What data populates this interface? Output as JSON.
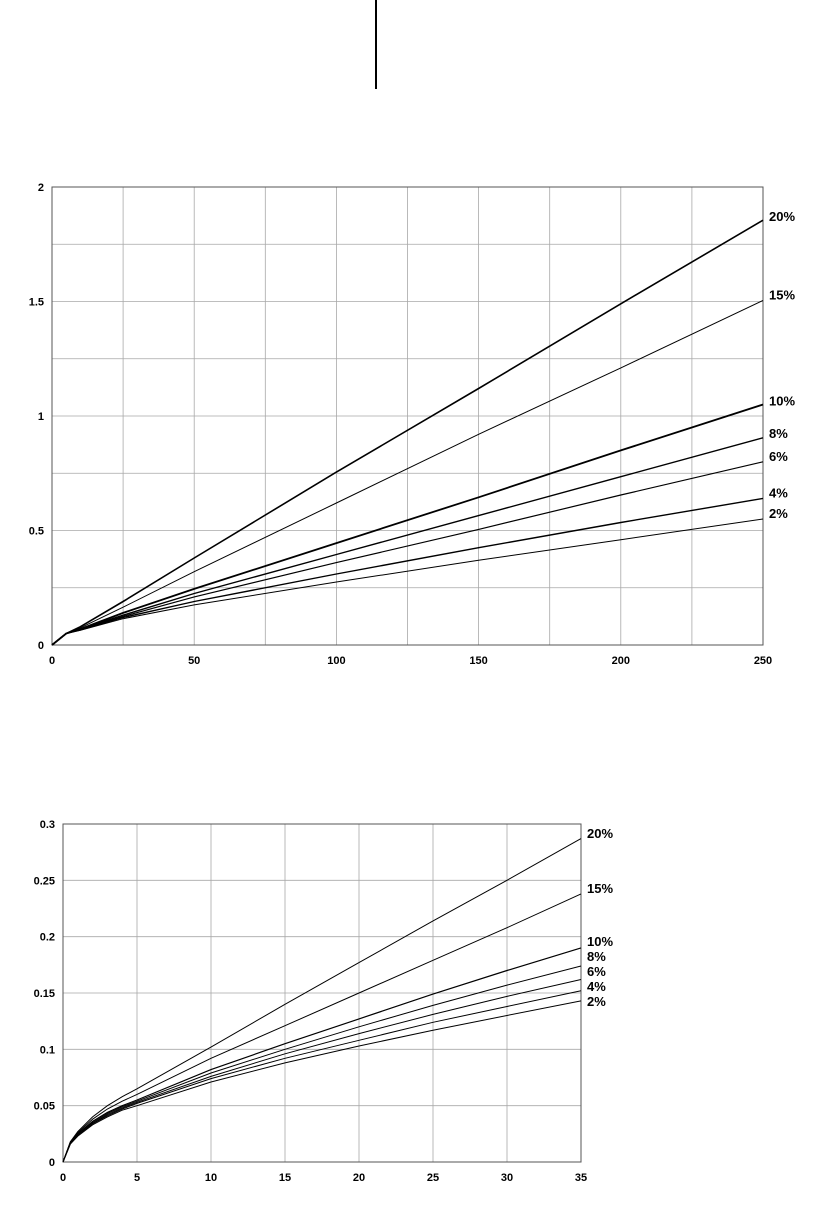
{
  "chart_data": [
    {
      "type": "line",
      "xlim": [
        0,
        250
      ],
      "ylim": [
        0,
        2
      ],
      "x_ticks": [
        0,
        50,
        100,
        150,
        200,
        250
      ],
      "x_tick_labels": [
        "0",
        "50",
        "100",
        "150",
        "200",
        "250"
      ],
      "y_ticks": [
        0,
        0.5,
        1,
        1.5,
        2
      ],
      "y_tick_labels": [
        "0",
        "0.5",
        "1",
        "1.5",
        "2"
      ],
      "x_grid": [
        0,
        25,
        50,
        75,
        100,
        125,
        150,
        175,
        200,
        225,
        250
      ],
      "y_grid": [
        0,
        0.25,
        0.5,
        0.75,
        1,
        1.25,
        1.5,
        1.75,
        2
      ],
      "grid": true,
      "legend": "labels at right end of each line",
      "series": [
        {
          "name": "20%",
          "x": [
            0,
            5,
            10,
            25,
            50,
            100,
            150,
            200,
            250
          ],
          "y": [
            0,
            0.05,
            0.08,
            0.19,
            0.38,
            0.755,
            1.12,
            1.49,
            1.855
          ]
        },
        {
          "name": "15%",
          "x": [
            0,
            5,
            10,
            25,
            50,
            100,
            150,
            200,
            250
          ],
          "y": [
            0,
            0.05,
            0.075,
            0.165,
            0.32,
            0.62,
            0.92,
            1.21,
            1.505
          ]
        },
        {
          "name": "10%",
          "x": [
            0,
            5,
            10,
            25,
            50,
            100,
            150,
            200,
            250
          ],
          "y": [
            0,
            0.05,
            0.07,
            0.14,
            0.245,
            0.445,
            0.645,
            0.85,
            1.05
          ]
        },
        {
          "name": "8%",
          "x": [
            0,
            5,
            10,
            25,
            50,
            100,
            150,
            200,
            250
          ],
          "y": [
            0,
            0.05,
            0.07,
            0.13,
            0.225,
            0.395,
            0.565,
            0.735,
            0.905
          ]
        },
        {
          "name": "6%",
          "x": [
            0,
            5,
            10,
            25,
            50,
            100,
            150,
            200,
            250
          ],
          "y": [
            0,
            0.05,
            0.068,
            0.125,
            0.21,
            0.36,
            0.505,
            0.655,
            0.8
          ]
        },
        {
          "name": "4%",
          "x": [
            0,
            5,
            10,
            25,
            50,
            100,
            150,
            200,
            250
          ],
          "y": [
            0,
            0.05,
            0.066,
            0.12,
            0.19,
            0.31,
            0.425,
            0.535,
            0.64
          ]
        },
        {
          "name": "2%",
          "x": [
            0,
            5,
            10,
            25,
            50,
            100,
            150,
            200,
            250
          ],
          "y": [
            0,
            0.05,
            0.064,
            0.115,
            0.175,
            0.275,
            0.37,
            0.46,
            0.55
          ]
        }
      ]
    },
    {
      "type": "line",
      "xlim": [
        0,
        35
      ],
      "ylim": [
        0,
        0.3
      ],
      "x_ticks": [
        0,
        5,
        10,
        15,
        20,
        25,
        30,
        35
      ],
      "x_tick_labels": [
        "0",
        "5",
        "10",
        "15",
        "20",
        "25",
        "30",
        "35"
      ],
      "y_ticks": [
        0,
        0.05,
        0.1,
        0.15,
        0.2,
        0.25,
        0.3
      ],
      "y_tick_labels": [
        "0",
        "0.05",
        "0.1",
        "0.15",
        "0.2",
        "0.25",
        "0.3"
      ],
      "x_grid": [
        0,
        5,
        10,
        15,
        20,
        25,
        30,
        35
      ],
      "y_grid": [
        0,
        0.05,
        0.1,
        0.15,
        0.2,
        0.25,
        0.3
      ],
      "grid": true,
      "legend": "labels at right end of each line",
      "series": [
        {
          "name": "20%",
          "x": [
            0,
            0.5,
            1,
            2,
            3,
            4,
            5,
            10,
            15,
            20,
            25,
            30,
            35
          ],
          "y": [
            0,
            0.018,
            0.027,
            0.04,
            0.05,
            0.058,
            0.065,
            0.102,
            0.14,
            0.177,
            0.214,
            0.25,
            0.287
          ]
        },
        {
          "name": "15%",
          "x": [
            0,
            0.5,
            1,
            2,
            3,
            4,
            5,
            10,
            15,
            20,
            25,
            30,
            35
          ],
          "y": [
            0,
            0.018,
            0.026,
            0.038,
            0.047,
            0.054,
            0.06,
            0.092,
            0.121,
            0.15,
            0.179,
            0.208,
            0.238
          ]
        },
        {
          "name": "10%",
          "x": [
            0,
            0.5,
            1,
            2,
            3,
            4,
            5,
            10,
            15,
            20,
            25,
            30,
            35
          ],
          "y": [
            0,
            0.017,
            0.025,
            0.036,
            0.044,
            0.05,
            0.055,
            0.082,
            0.105,
            0.127,
            0.149,
            0.17,
            0.19
          ]
        },
        {
          "name": "8%",
          "x": [
            0,
            0.5,
            1,
            2,
            3,
            4,
            5,
            10,
            15,
            20,
            25,
            30,
            35
          ],
          "y": [
            0,
            0.017,
            0.025,
            0.035,
            0.043,
            0.049,
            0.054,
            0.079,
            0.1,
            0.12,
            0.139,
            0.157,
            0.174
          ]
        },
        {
          "name": "6%",
          "x": [
            0,
            0.5,
            1,
            2,
            3,
            4,
            5,
            10,
            15,
            20,
            25,
            30,
            35
          ],
          "y": [
            0,
            0.017,
            0.024,
            0.034,
            0.042,
            0.048,
            0.053,
            0.076,
            0.096,
            0.114,
            0.131,
            0.147,
            0.162
          ]
        },
        {
          "name": "4%",
          "x": [
            0,
            0.5,
            1,
            2,
            3,
            4,
            5,
            10,
            15,
            20,
            25,
            30,
            35
          ],
          "y": [
            0,
            0.017,
            0.024,
            0.034,
            0.041,
            0.047,
            0.052,
            0.074,
            0.092,
            0.108,
            0.124,
            0.138,
            0.152
          ]
        },
        {
          "name": "2%",
          "x": [
            0,
            0.5,
            1,
            2,
            3,
            4,
            5,
            10,
            15,
            20,
            25,
            30,
            35
          ],
          "y": [
            0,
            0.016,
            0.023,
            0.033,
            0.04,
            0.046,
            0.05,
            0.071,
            0.088,
            0.103,
            0.117,
            0.13,
            0.143
          ]
        }
      ]
    }
  ]
}
